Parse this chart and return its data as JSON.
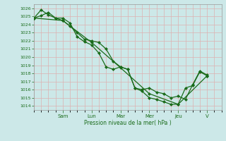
{
  "title": "",
  "xlabel": "Pression niveau de la mer( hPa )",
  "ylim": [
    1013.5,
    1026.5
  ],
  "yticks": [
    1014,
    1015,
    1016,
    1017,
    1018,
    1019,
    1020,
    1021,
    1022,
    1023,
    1024,
    1025,
    1026
  ],
  "day_labels": [
    "Sam",
    "Lun",
    "Mar",
    "Mer",
    "Jeu",
    "V"
  ],
  "day_positions": [
    24,
    48,
    72,
    96,
    120,
    144
  ],
  "xlim": [
    0,
    156
  ],
  "background_color": "#cce8e8",
  "grid_color": "#ddb0b0",
  "line_color": "#1a6b1a",
  "line1_x": [
    0,
    6,
    12,
    18,
    24,
    30,
    36,
    42,
    48,
    54,
    60,
    66,
    72,
    78,
    84,
    90,
    96,
    102,
    108,
    114,
    120,
    126,
    132,
    138,
    144
  ],
  "line1_y": [
    1024.8,
    1025.1,
    1025.5,
    1024.8,
    1024.5,
    1023.8,
    1023.0,
    1022.2,
    1022.0,
    1021.8,
    1021.0,
    1019.5,
    1018.8,
    1018.5,
    1016.2,
    1016.0,
    1016.2,
    1015.7,
    1015.5,
    1015.0,
    1015.2,
    1014.8,
    1016.6,
    1018.3,
    1017.8
  ],
  "line2_x": [
    0,
    6,
    12,
    18,
    24,
    30,
    36,
    42,
    48,
    54,
    60,
    66,
    72,
    78,
    84,
    90,
    96,
    102,
    108,
    114,
    120,
    126,
    132,
    138,
    144
  ],
  "line2_y": [
    1024.8,
    1025.8,
    1025.2,
    1024.8,
    1024.8,
    1024.2,
    1022.5,
    1021.9,
    1021.5,
    1020.5,
    1018.8,
    1018.5,
    1018.8,
    1018.5,
    1016.2,
    1015.8,
    1015.0,
    1014.8,
    1014.5,
    1014.2,
    1014.2,
    1016.2,
    1016.5,
    1018.2,
    1017.7
  ],
  "line3_x": [
    0,
    24,
    48,
    72,
    96,
    120,
    144
  ],
  "line3_y": [
    1024.8,
    1024.5,
    1021.8,
    1018.7,
    1015.5,
    1014.2,
    1017.7
  ]
}
